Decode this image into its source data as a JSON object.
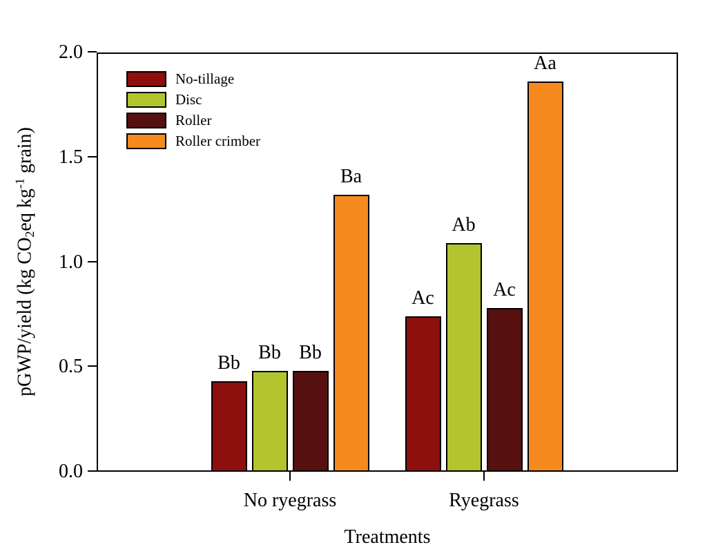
{
  "chart_data": {
    "type": "bar",
    "title": "",
    "xlabel": "Treatments",
    "ylabel": "pGWP/yield (kg CO2eq kg-1 grain)",
    "ylabel_parts": {
      "pre": "pGWP/yield (kg CO",
      "sub": "2",
      "mid": "eq kg",
      "sup": "-1",
      "post": " grain)"
    },
    "ylim": [
      0,
      2.0
    ],
    "yticks": [
      "0.0",
      "0.5",
      "1.0",
      "1.5",
      "2.0"
    ],
    "grid": false,
    "legend_position": "top-left-inside",
    "categories": [
      "No ryegrass",
      "Ryegrass"
    ],
    "series": [
      {
        "name": "No-tillage",
        "color": "#8D0F0E",
        "values": [
          0.43,
          0.74
        ],
        "sig_labels": [
          "Bb",
          "Ac"
        ]
      },
      {
        "name": "Disc",
        "color": "#B2C52F",
        "values": [
          0.48,
          1.09
        ],
        "sig_labels": [
          "Bb",
          "Ab"
        ]
      },
      {
        "name": "Roller",
        "color": "#571010",
        "values": [
          0.48,
          0.78
        ],
        "sig_labels": [
          "Bb",
          "Ac"
        ]
      },
      {
        "name": "Roller crimber",
        "color": "#F68A1F",
        "values": [
          1.32,
          1.86
        ],
        "sig_labels": [
          "Ba",
          "Aa"
        ]
      }
    ],
    "axis_color": "#000000",
    "background_color": "#ffffff"
  }
}
